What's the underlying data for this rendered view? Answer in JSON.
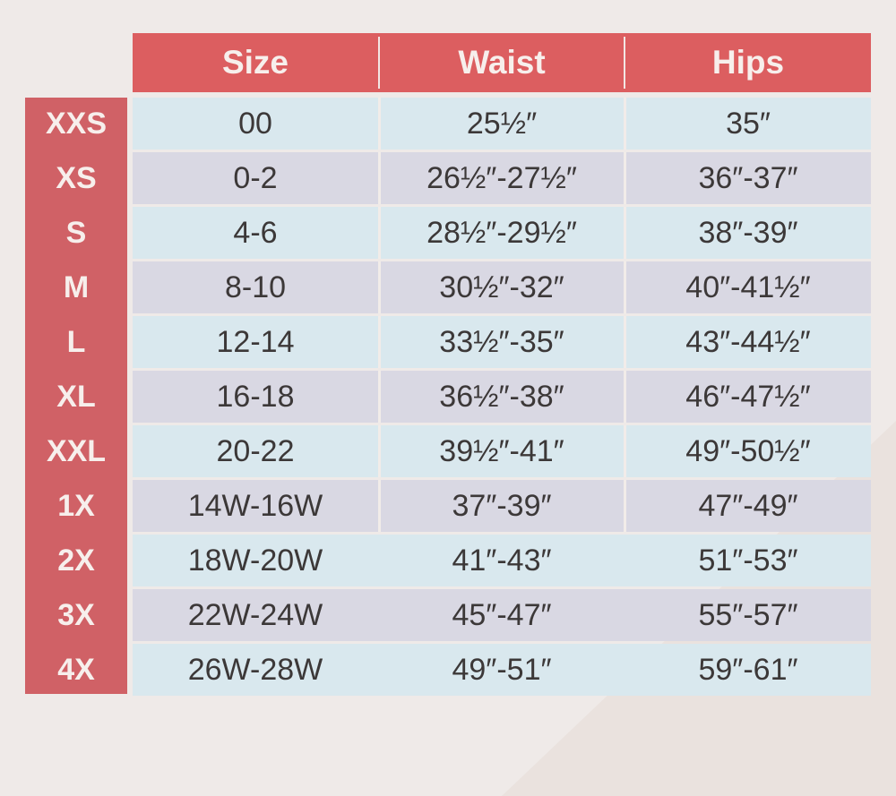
{
  "colors": {
    "header": "#dc5e60",
    "label_column": "#d06166",
    "row_light_blue": "#d9e8ee",
    "row_lavender": "#d9d8e3",
    "text": "#3c3838",
    "background": "#efeae8"
  },
  "header": {
    "columns": [
      "Size",
      "Waist",
      "Hips"
    ]
  },
  "rows": [
    {
      "label": "XXS",
      "size": "00",
      "waist": "25½″",
      "hips": "35″"
    },
    {
      "label": "XS",
      "size": "0-2",
      "waist": "26½″-27½″",
      "hips": "36″-37″"
    },
    {
      "label": "S",
      "size": "4-6",
      "waist": "28½″-29½″",
      "hips": "38″-39″"
    },
    {
      "label": "M",
      "size": "8-10",
      "waist": "30½″-32″",
      "hips": "40″-41½″"
    },
    {
      "label": "L",
      "size": "12-14",
      "waist": "33½″-35″",
      "hips": "43″-44½″"
    },
    {
      "label": "XL",
      "size": "16-18",
      "waist": "36½″-38″",
      "hips": "46″-47½″"
    },
    {
      "label": "XXL",
      "size": "20-22",
      "waist": "39½″-41″",
      "hips": "49″-50½″"
    },
    {
      "label": "1X",
      "size": "14W-16W",
      "waist": "37″-39″",
      "hips": "47″-49″"
    },
    {
      "label": "2X",
      "size": "18W-20W",
      "waist": "41″-43″",
      "hips": "51″-53″"
    },
    {
      "label": "3X",
      "size": "22W-24W",
      "waist": "45″-47″",
      "hips": "55″-57″"
    },
    {
      "label": "4X",
      "size": "26W-28W",
      "waist": "49″-51″",
      "hips": "59″-61″"
    }
  ]
}
